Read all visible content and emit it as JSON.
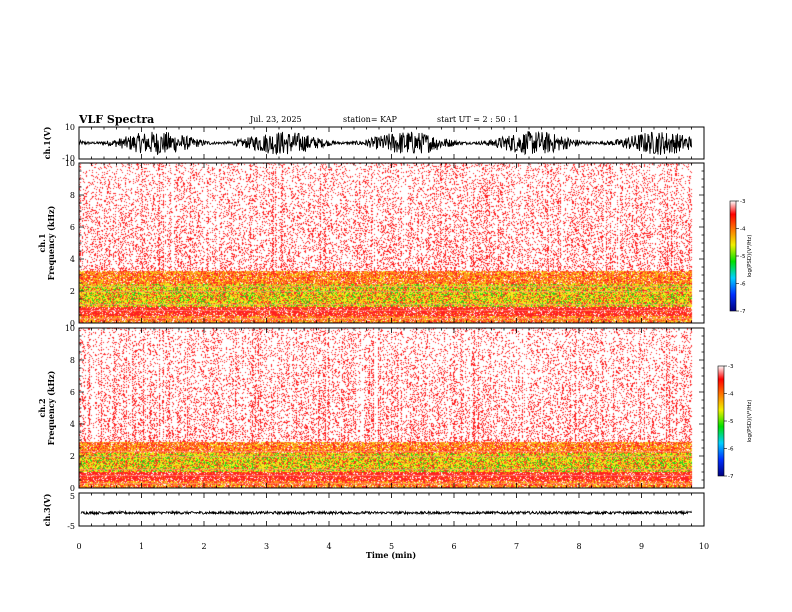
{
  "header": {
    "title": "VLF Spectra",
    "date": "Jul. 23, 2025",
    "station": "station= KAP",
    "start": "start  UT =   2 : 50 : 1"
  },
  "colors": {
    "red": "#ff2020",
    "orange": "#ff8c1a",
    "yellow": "#f2f21a",
    "green": "#22d422",
    "blue": "#0000cc",
    "axis": "#000000"
  },
  "chart_data": [
    {
      "type": "line",
      "title": "ch.1 waveform",
      "ylabel": "ch.1(V)",
      "ylim": [
        -10,
        10
      ],
      "yticks": [
        "10",
        "-10"
      ],
      "xlim": [
        0,
        10
      ],
      "series": [
        {
          "name": "ch.1",
          "amplitude_v": 7.5,
          "coverage_until_min": 9.8
        }
      ]
    },
    {
      "type": "heatmap",
      "title": "ch.1 spectrogram",
      "ylabel_a": "ch.1",
      "ylabel_b": "Frequency  (kHz)",
      "ylim": [
        0,
        10
      ],
      "yticks": [
        "0",
        "2",
        "4",
        "6",
        "8",
        "10"
      ],
      "xlim": [
        0,
        10
      ],
      "coverage_until_min": 9.8,
      "bands": [
        {
          "range_khz": [
            0,
            0.5
          ],
          "level": "orange"
        },
        {
          "range_khz": [
            0.5,
            1.0
          ],
          "level": "red"
        },
        {
          "range_khz": [
            1.0,
            2.5
          ],
          "level": "yellow-green"
        },
        {
          "range_khz": [
            2.5,
            3.3
          ],
          "level": "orange"
        },
        {
          "range_khz": [
            3.3,
            10
          ],
          "level": "red-sparse"
        }
      ],
      "colorbar": {
        "label": "log(PSD)(V²/Hz)",
        "range": [
          -7,
          -3
        ],
        "ticks": [
          "-3",
          "-4",
          "-5",
          "-6",
          "-7"
        ]
      }
    },
    {
      "type": "heatmap",
      "title": "ch.2 spectrogram",
      "ylabel_a": "ch.2",
      "ylabel_b": "Frequency  (kHz)",
      "ylim": [
        0,
        10
      ],
      "yticks": [
        "0",
        "2",
        "4",
        "6",
        "8",
        "10"
      ],
      "xlim": [
        0,
        10
      ],
      "coverage_until_min": 9.8,
      "bands": [
        {
          "range_khz": [
            0,
            0.5
          ],
          "level": "orange"
        },
        {
          "range_khz": [
            0.5,
            1.0
          ],
          "level": "red"
        },
        {
          "range_khz": [
            1.0,
            2.2
          ],
          "level": "yellow-green"
        },
        {
          "range_khz": [
            2.2,
            2.9
          ],
          "level": "orange"
        },
        {
          "range_khz": [
            2.9,
            10
          ],
          "level": "red-sparse"
        }
      ],
      "colorbar": {
        "label": "log(PSD)(V²/Hz)",
        "range": [
          -7,
          -3
        ],
        "ticks": [
          "-3",
          "-4",
          "-5",
          "-6",
          "-7"
        ]
      }
    },
    {
      "type": "line",
      "title": "ch.3 waveform",
      "ylabel": "ch.3(V)",
      "ylim": [
        -5,
        5
      ],
      "yticks": [
        "5",
        "-5"
      ],
      "xlim": [
        0,
        10
      ],
      "series": [
        {
          "name": "ch.3",
          "center_v": -1.0,
          "amplitude_v": 0.4,
          "coverage_until_min": 9.8
        }
      ]
    }
  ],
  "xaxis": {
    "label": "Time  (min)",
    "ticks": [
      "0",
      "1",
      "2",
      "3",
      "4",
      "5",
      "6",
      "7",
      "8",
      "9",
      "10"
    ]
  }
}
